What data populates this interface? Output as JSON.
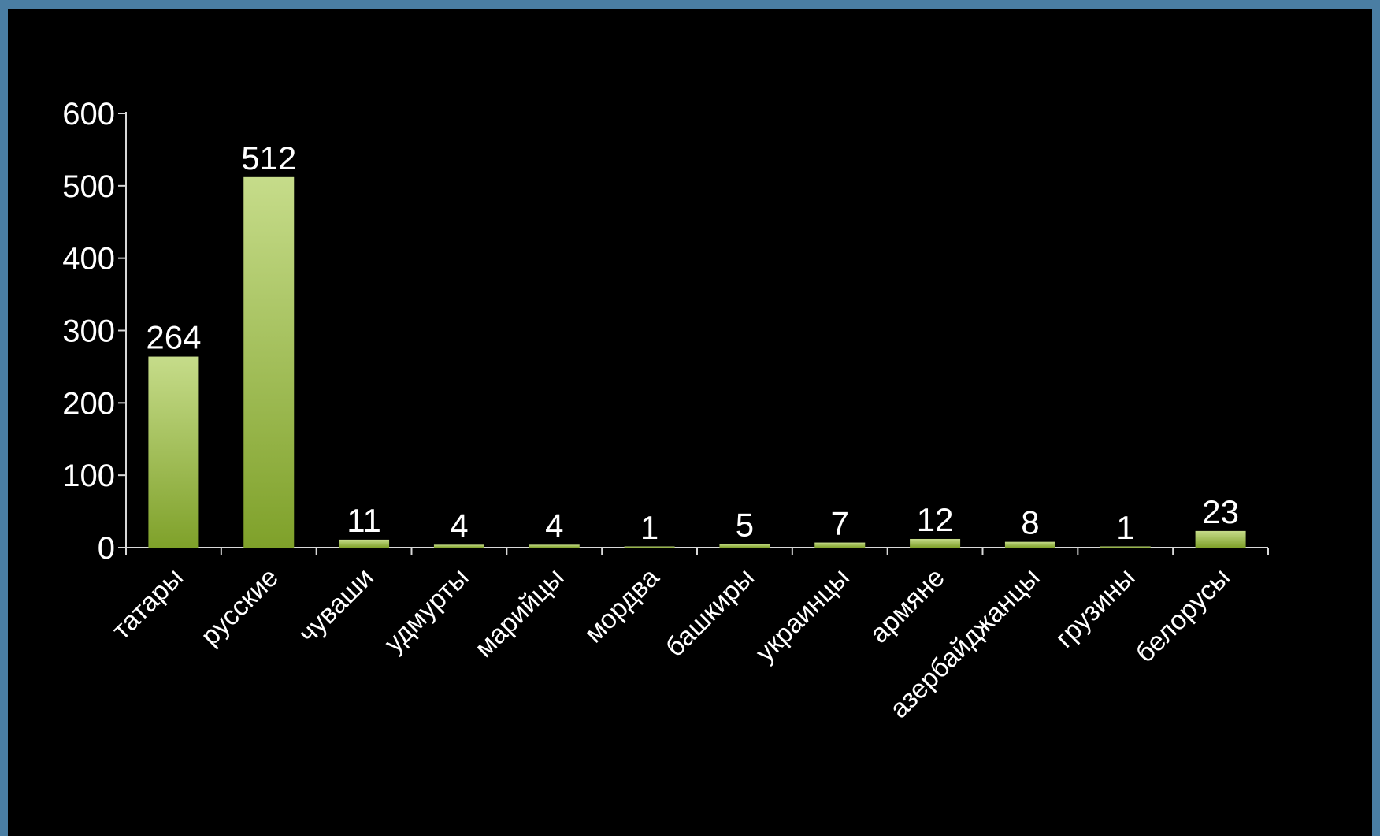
{
  "chart_data": {
    "type": "bar",
    "title": "",
    "xlabel": "",
    "ylabel": "",
    "ylim": [
      0,
      600
    ],
    "yticks": [
      0,
      100,
      200,
      300,
      400,
      500,
      600
    ],
    "grid": false,
    "legend": "none",
    "categories": [
      "татары",
      "русские",
      "чуваши",
      "удмурты",
      "марийцы",
      "мордва",
      "башкиры",
      "украинцы",
      "армяне",
      "азербайджанцы",
      "грузины",
      "белорусы"
    ],
    "values": [
      264,
      512,
      11,
      4,
      4,
      1,
      5,
      7,
      12,
      8,
      1,
      23
    ],
    "bar_color_top": "#c6dc8a",
    "bar_color_bottom": "#7fa12a",
    "axis_color": "#d9d9d9",
    "background": "#000000",
    "frame_color": "#4a7ea3"
  }
}
